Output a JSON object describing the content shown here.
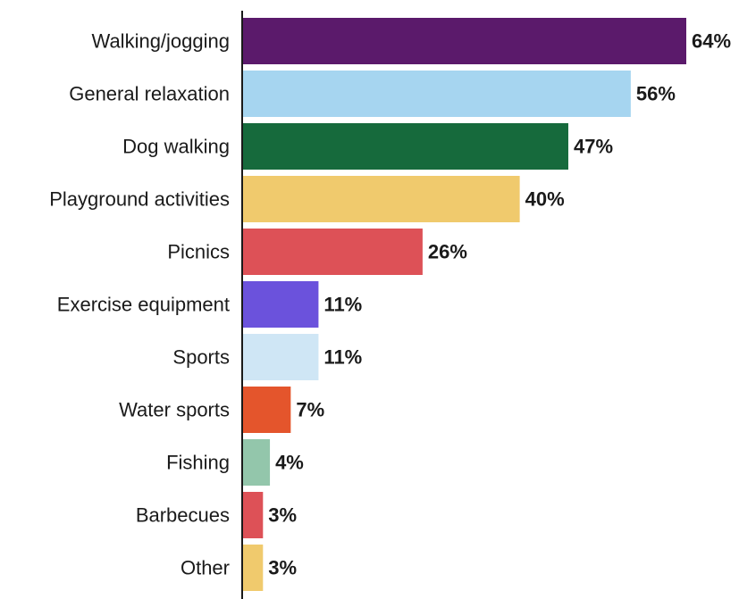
{
  "chart_data": {
    "type": "bar",
    "orientation": "horizontal",
    "categories": [
      "Walking/jogging",
      "General relaxation",
      "Dog walking",
      "Playground activities",
      "Picnics",
      "Exercise equipment",
      "Sports",
      "Water sports",
      "Fishing",
      "Barbecues",
      "Other"
    ],
    "values": [
      64,
      56,
      47,
      40,
      26,
      11,
      11,
      7,
      4,
      3,
      3
    ],
    "value_labels": [
      "64%",
      "56%",
      "47%",
      "40%",
      "26%",
      "11%",
      "11%",
      "7%",
      "4%",
      "3%",
      "3%"
    ],
    "colors": [
      "#5b1a6b",
      "#a6d5f0",
      "#166a3c",
      "#f0ca6d",
      "#dd5157",
      "#6b52dc",
      "#cfe6f5",
      "#e4552c",
      "#93c6ab",
      "#dd5157",
      "#f0ca6d"
    ],
    "title": "",
    "xlabel": "",
    "ylabel": "",
    "xlim": [
      0,
      64
    ],
    "grid": false,
    "legend": "none"
  }
}
